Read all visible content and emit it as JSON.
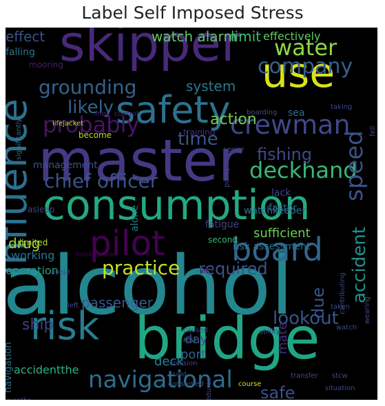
{
  "title": "Label Self Imposed Stress",
  "words": [
    {
      "text": "alcohol",
      "color": "#24868e"
    },
    {
      "text": "master",
      "color": "#443983"
    },
    {
      "text": "bridge",
      "color": "#21a685"
    },
    {
      "text": "consumption",
      "color": "#23a983"
    },
    {
      "text": "skipper",
      "color": "#482979"
    },
    {
      "text": "influence",
      "color": "#2d708e"
    },
    {
      "text": "safety",
      "color": "#2c728e"
    },
    {
      "text": "use",
      "color": "#d8e219"
    },
    {
      "text": "risk",
      "color": "#287d8e"
    },
    {
      "text": "board",
      "color": "#31678e"
    },
    {
      "text": "pilot",
      "color": "#440154"
    },
    {
      "text": "navigational",
      "color": "#2e6e8e"
    },
    {
      "text": "probably",
      "color": "#481467"
    },
    {
      "text": "crewman",
      "color": "#3f4889"
    },
    {
      "text": "company",
      "color": "#355f8d"
    },
    {
      "text": "water",
      "color": "#90d743"
    },
    {
      "text": "grounding",
      "color": "#33638d"
    },
    {
      "text": "deckhand",
      "color": "#38b977"
    },
    {
      "text": "speed",
      "color": "#3b528b"
    },
    {
      "text": "chief officer",
      "color": "#3a538b"
    },
    {
      "text": "practice",
      "color": "#c8e020"
    },
    {
      "text": "accident",
      "color": "#20928c"
    },
    {
      "text": "lookout",
      "color": "#3a538b"
    },
    {
      "text": "fishing",
      "color": "#3e4a89"
    },
    {
      "text": "time",
      "color": "#39568c"
    },
    {
      "text": "likely",
      "color": "#33638d"
    },
    {
      "text": "action",
      "color": "#75d054"
    },
    {
      "text": "system",
      "color": "#2a788e"
    },
    {
      "text": "watch alarm",
      "color": "#5ec962"
    },
    {
      "text": "limit",
      "color": "#3dbc74"
    },
    {
      "text": "effect",
      "color": "#3b518b"
    },
    {
      "text": "effectively",
      "color": "#5ec962"
    },
    {
      "text": "required",
      "color": "#3b528b"
    },
    {
      "text": "drug",
      "color": "#a8db34"
    },
    {
      "text": "due",
      "color": "#3a548c"
    },
    {
      "text": "passenger",
      "color": "#39568c"
    },
    {
      "text": "ship",
      "color": "#433e85"
    },
    {
      "text": "safe",
      "color": "#3b528b"
    },
    {
      "text": "deck",
      "color": "#25858e"
    },
    {
      "text": "port",
      "color": "#33638d"
    },
    {
      "text": "day",
      "color": "#404688"
    },
    {
      "text": "sufficient",
      "color": "#6ccd5a"
    },
    {
      "text": "working",
      "color": "#2a768e"
    },
    {
      "text": "operation",
      "color": "#1f9f88"
    },
    {
      "text": "fatigue",
      "color": "#414487"
    },
    {
      "text": "mate",
      "color": "#472d7b"
    },
    {
      "text": "distracted",
      "color": "#3e4989"
    },
    {
      "text": "navigation",
      "color": "#2c718e"
    },
    {
      "text": "accidentthe",
      "color": "#2db27d"
    },
    {
      "text": "risk assessment",
      "color": "#2c728e"
    },
    {
      "text": "management",
      "color": "#3b528b"
    },
    {
      "text": "falling",
      "color": "#2a778e"
    },
    {
      "text": "mooring",
      "color": "#481d6f"
    },
    {
      "text": "lack",
      "color": "#3e4989"
    },
    {
      "text": "watchkeeper",
      "color": "#2d708e"
    },
    {
      "text": "factor",
      "color": "#2f6c8e"
    },
    {
      "text": "second",
      "color": "#37b878"
    },
    {
      "text": "alone",
      "color": "#27808e"
    },
    {
      "text": "sea",
      "color": "#2d708e"
    },
    {
      "text": "become",
      "color": "#c0df25"
    },
    {
      "text": "lifejacket",
      "color": "#b5de2b"
    },
    {
      "text": "significantly",
      "color": "#2d708e"
    },
    {
      "text": "asleep",
      "color": "#3e4989"
    },
    {
      "text": "limited",
      "color": "#b2dd2d"
    },
    {
      "text": "training",
      "color": "#46307e"
    },
    {
      "text": "senior",
      "color": "#3e4989"
    },
    {
      "text": "policy",
      "color": "#3e4989"
    },
    {
      "text": "may",
      "color": "#482475"
    },
    {
      "text": "control",
      "color": "#482374"
    },
    {
      "text": "boarding",
      "color": "#3e4989"
    },
    {
      "text": "taking",
      "color": "#3e4989"
    },
    {
      "text": "fell",
      "color": "#3e4989"
    },
    {
      "text": "hook",
      "color": "#440154"
    },
    {
      "text": "blood",
      "color": "#440154"
    },
    {
      "text": "avoid",
      "color": "#3e4989"
    },
    {
      "text": "vital",
      "color": "#440154"
    },
    {
      "text": "left",
      "color": "#3e4989"
    },
    {
      "text": "caused",
      "color": "#3e4989"
    },
    {
      "text": "rest",
      "color": "#2a768e"
    },
    {
      "text": "contributing",
      "color": "#3e4989"
    },
    {
      "text": "taken",
      "color": "#3e4989"
    },
    {
      "text": "wearing",
      "color": "#3e4989"
    },
    {
      "text": "collision",
      "color": "#3e4989"
    },
    {
      "text": "cold",
      "color": "#3e4989"
    },
    {
      "text": "ability",
      "color": "#3e4989"
    },
    {
      "text": "watch",
      "color": "#3e4989"
    },
    {
      "text": "procedures",
      "color": "#3e4989"
    },
    {
      "text": "consumed",
      "color": "#3e4989"
    },
    {
      "text": "course",
      "color": "#d8e219"
    },
    {
      "text": "transfer",
      "color": "#3e4989"
    },
    {
      "text": "stcw",
      "color": "#3e4989"
    },
    {
      "text": "situation",
      "color": "#3e4989"
    },
    {
      "text": "months",
      "color": "#3e4989"
    },
    {
      "text": "contact",
      "color": "#3e4989"
    },
    {
      "text": "wheelhouse",
      "color": "#24868e"
    },
    {
      "text": "harbour",
      "color": "#3e4989"
    },
    {
      "text": "medication",
      "color": "#3e4989"
    }
  ]
}
